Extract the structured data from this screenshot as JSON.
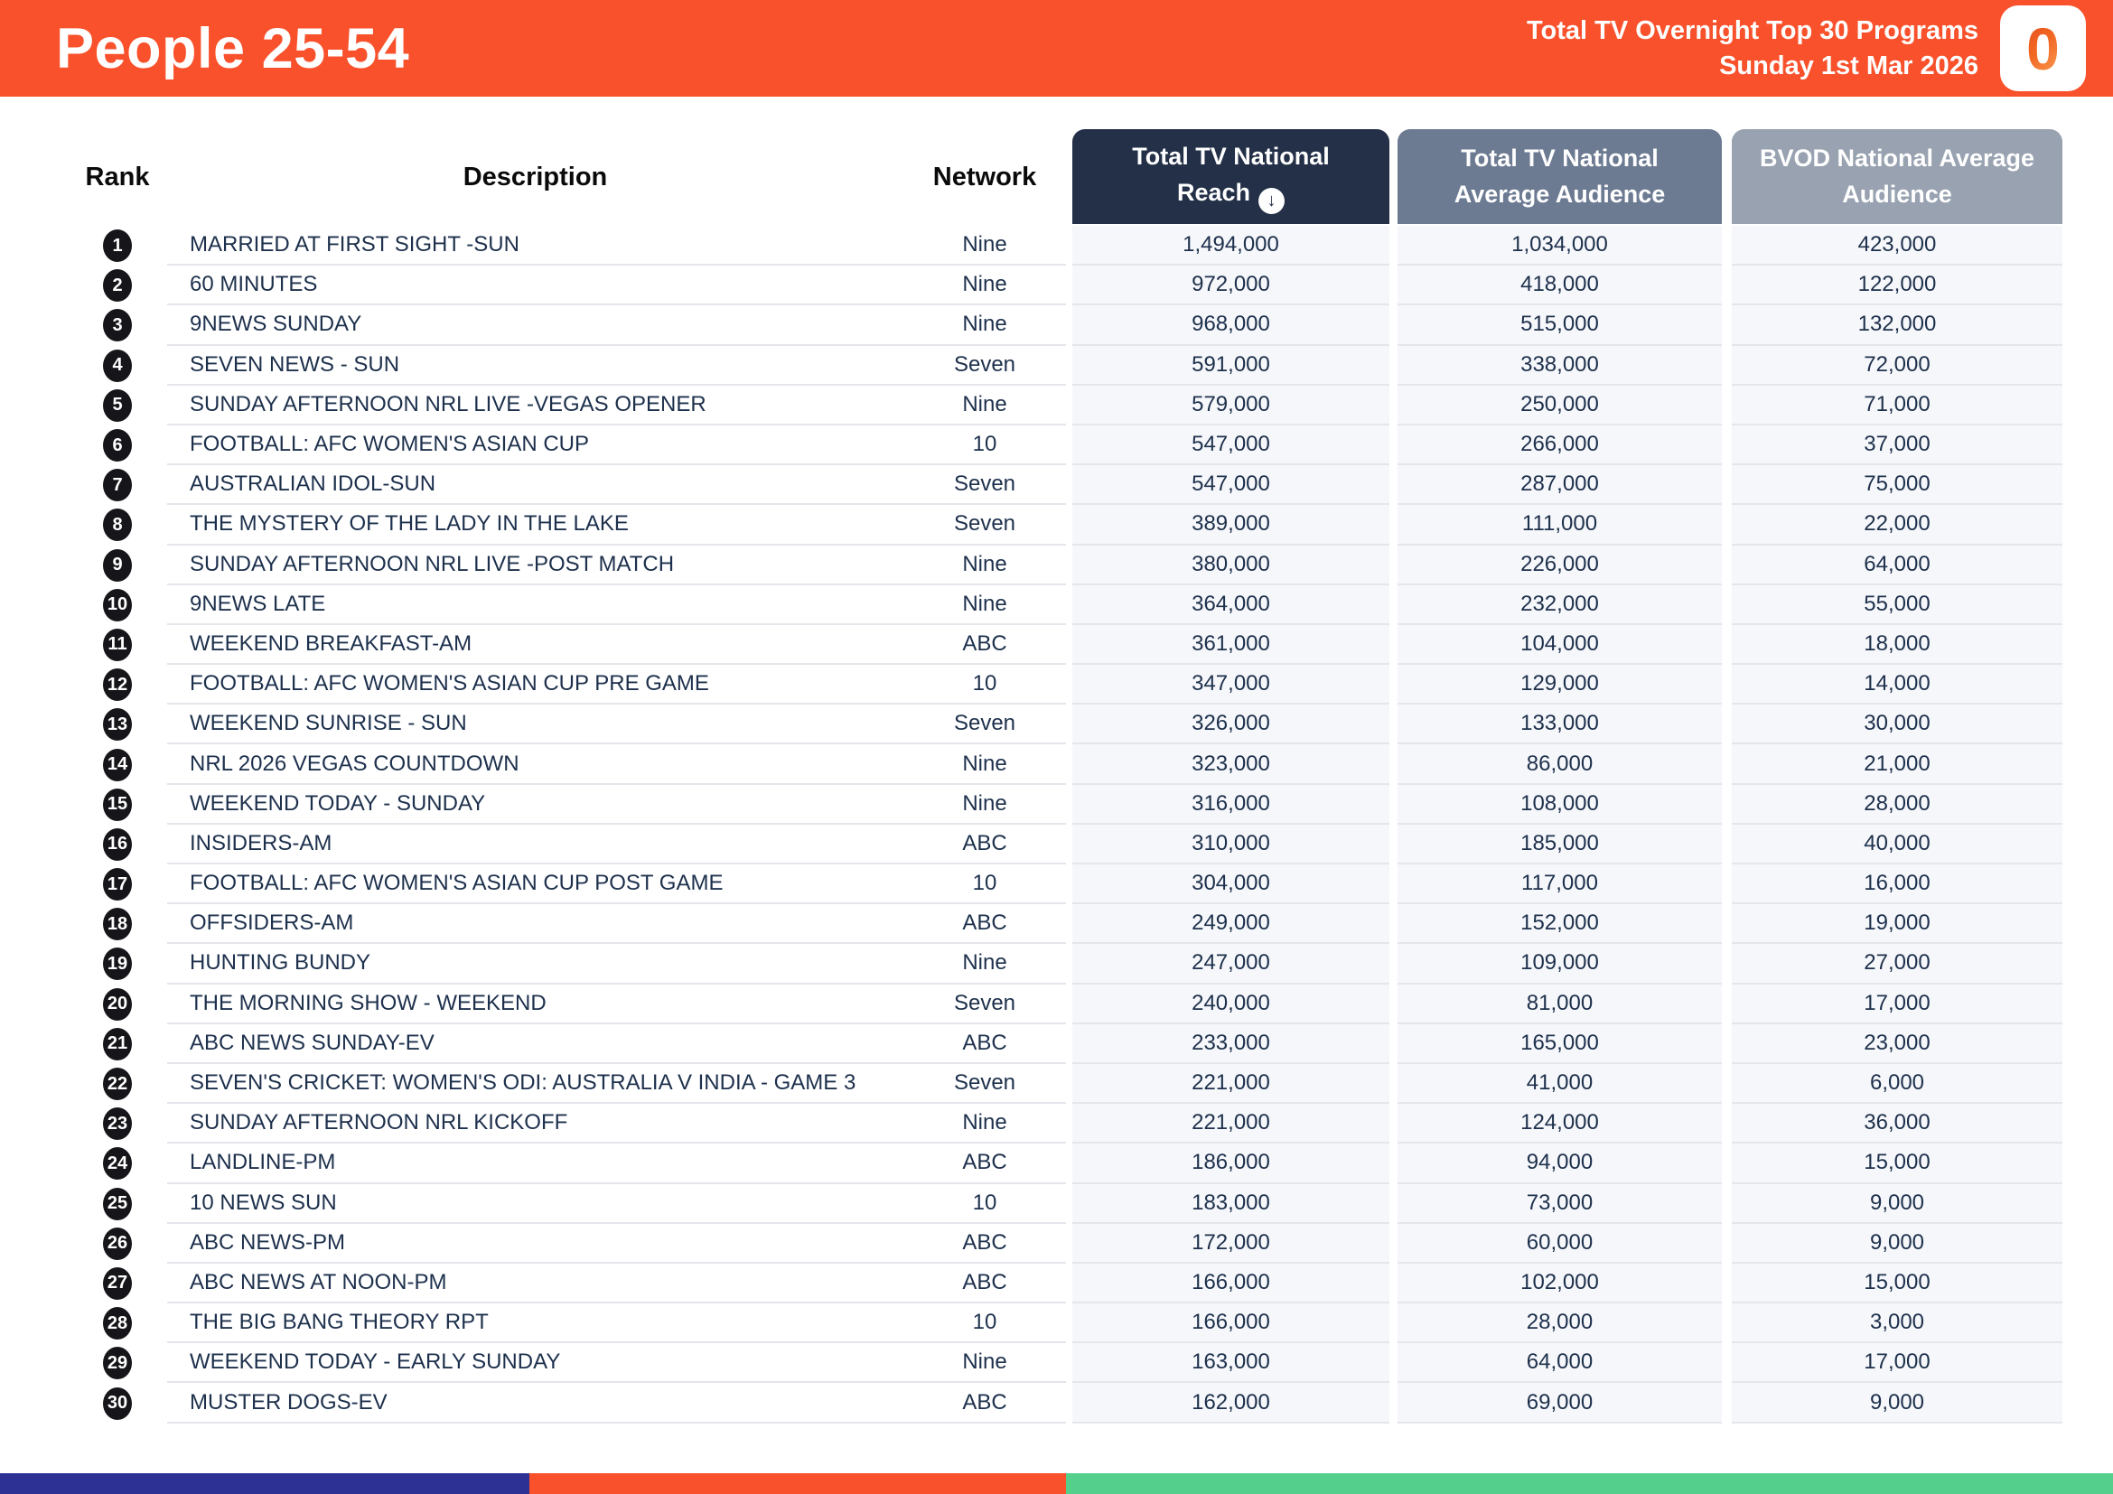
{
  "header": {
    "title": "People 25-54",
    "subtitle_line1": "Total TV Overnight Top 30 Programs",
    "subtitle_line2": "Sunday 1st Mar 2026",
    "logo_glyph": "0",
    "banner_color": "#F8512B"
  },
  "table": {
    "columns": {
      "rank": "Rank",
      "description": "Description",
      "network": "Network",
      "reach": "Total TV National Reach",
      "avg": "Total TV National Average Audience",
      "bvod": "BVOD National Average Audience"
    },
    "icons": {
      "sort_desc": "↓"
    },
    "header_colors": {
      "reach": "#233047",
      "avg": "#6C7A92",
      "bvod": "#98A2B0"
    },
    "rows": [
      {
        "rank": "1",
        "description": "MARRIED AT FIRST SIGHT -SUN",
        "network": "Nine",
        "reach": "1,494,000",
        "avg": "1,034,000",
        "bvod": "423,000"
      },
      {
        "rank": "2",
        "description": "60 MINUTES",
        "network": "Nine",
        "reach": "972,000",
        "avg": "418,000",
        "bvod": "122,000"
      },
      {
        "rank": "3",
        "description": "9NEWS SUNDAY",
        "network": "Nine",
        "reach": "968,000",
        "avg": "515,000",
        "bvod": "132,000"
      },
      {
        "rank": "4",
        "description": "SEVEN NEWS - SUN",
        "network": "Seven",
        "reach": "591,000",
        "avg": "338,000",
        "bvod": "72,000"
      },
      {
        "rank": "5",
        "description": "SUNDAY AFTERNOON NRL LIVE -VEGAS OPENER",
        "network": "Nine",
        "reach": "579,000",
        "avg": "250,000",
        "bvod": "71,000"
      },
      {
        "rank": "6",
        "description": "FOOTBALL: AFC WOMEN'S ASIAN CUP",
        "network": "10",
        "reach": "547,000",
        "avg": "266,000",
        "bvod": "37,000"
      },
      {
        "rank": "7",
        "description": "AUSTRALIAN IDOL-SUN",
        "network": "Seven",
        "reach": "547,000",
        "avg": "287,000",
        "bvod": "75,000"
      },
      {
        "rank": "8",
        "description": "THE MYSTERY OF THE LADY IN THE LAKE",
        "network": "Seven",
        "reach": "389,000",
        "avg": "111,000",
        "bvod": "22,000"
      },
      {
        "rank": "9",
        "description": "SUNDAY AFTERNOON NRL LIVE -POST MATCH",
        "network": "Nine",
        "reach": "380,000",
        "avg": "226,000",
        "bvod": "64,000"
      },
      {
        "rank": "10",
        "description": "9NEWS LATE",
        "network": "Nine",
        "reach": "364,000",
        "avg": "232,000",
        "bvod": "55,000"
      },
      {
        "rank": "11",
        "description": "WEEKEND BREAKFAST-AM",
        "network": "ABC",
        "reach": "361,000",
        "avg": "104,000",
        "bvod": "18,000"
      },
      {
        "rank": "12",
        "description": "FOOTBALL: AFC WOMEN'S ASIAN CUP PRE GAME",
        "network": "10",
        "reach": "347,000",
        "avg": "129,000",
        "bvod": "14,000"
      },
      {
        "rank": "13",
        "description": "WEEKEND SUNRISE - SUN",
        "network": "Seven",
        "reach": "326,000",
        "avg": "133,000",
        "bvod": "30,000"
      },
      {
        "rank": "14",
        "description": "NRL 2026 VEGAS COUNTDOWN",
        "network": "Nine",
        "reach": "323,000",
        "avg": "86,000",
        "bvod": "21,000"
      },
      {
        "rank": "15",
        "description": "WEEKEND TODAY - SUNDAY",
        "network": "Nine",
        "reach": "316,000",
        "avg": "108,000",
        "bvod": "28,000"
      },
      {
        "rank": "16",
        "description": "INSIDERS-AM",
        "network": "ABC",
        "reach": "310,000",
        "avg": "185,000",
        "bvod": "40,000"
      },
      {
        "rank": "17",
        "description": "FOOTBALL: AFC WOMEN'S ASIAN CUP POST GAME",
        "network": "10",
        "reach": "304,000",
        "avg": "117,000",
        "bvod": "16,000"
      },
      {
        "rank": "18",
        "description": "OFFSIDERS-AM",
        "network": "ABC",
        "reach": "249,000",
        "avg": "152,000",
        "bvod": "19,000"
      },
      {
        "rank": "19",
        "description": "HUNTING BUNDY",
        "network": "Nine",
        "reach": "247,000",
        "avg": "109,000",
        "bvod": "27,000"
      },
      {
        "rank": "20",
        "description": "THE MORNING SHOW - WEEKEND",
        "network": "Seven",
        "reach": "240,000",
        "avg": "81,000",
        "bvod": "17,000"
      },
      {
        "rank": "21",
        "description": "ABC NEWS SUNDAY-EV",
        "network": "ABC",
        "reach": "233,000",
        "avg": "165,000",
        "bvod": "23,000"
      },
      {
        "rank": "22",
        "description": "SEVEN'S CRICKET: WOMEN'S ODI: AUSTRALIA V INDIA - GAME 3",
        "network": "Seven",
        "reach": "221,000",
        "avg": "41,000",
        "bvod": "6,000"
      },
      {
        "rank": "23",
        "description": "SUNDAY AFTERNOON NRL KICKOFF",
        "network": "Nine",
        "reach": "221,000",
        "avg": "124,000",
        "bvod": "36,000"
      },
      {
        "rank": "24",
        "description": "LANDLINE-PM",
        "network": "ABC",
        "reach": "186,000",
        "avg": "94,000",
        "bvod": "15,000"
      },
      {
        "rank": "25",
        "description": "10 NEWS SUN",
        "network": "10",
        "reach": "183,000",
        "avg": "73,000",
        "bvod": "9,000"
      },
      {
        "rank": "26",
        "description": "ABC NEWS-PM",
        "network": "ABC",
        "reach": "172,000",
        "avg": "60,000",
        "bvod": "9,000"
      },
      {
        "rank": "27",
        "description": "ABC NEWS AT NOON-PM",
        "network": "ABC",
        "reach": "166,000",
        "avg": "102,000",
        "bvod": "15,000"
      },
      {
        "rank": "28",
        "description": "THE BIG BANG THEORY RPT",
        "network": "10",
        "reach": "166,000",
        "avg": "28,000",
        "bvod": "3,000"
      },
      {
        "rank": "29",
        "description": "WEEKEND TODAY - EARLY SUNDAY",
        "network": "Nine",
        "reach": "163,000",
        "avg": "64,000",
        "bvod": "17,000"
      },
      {
        "rank": "30",
        "description": "MUSTER DOGS-EV",
        "network": "ABC",
        "reach": "162,000",
        "avg": "69,000",
        "bvod": "9,000"
      }
    ]
  },
  "footer": {
    "bar_colors": [
      "#2D3193",
      "#F8512B",
      "#55D08C"
    ]
  }
}
